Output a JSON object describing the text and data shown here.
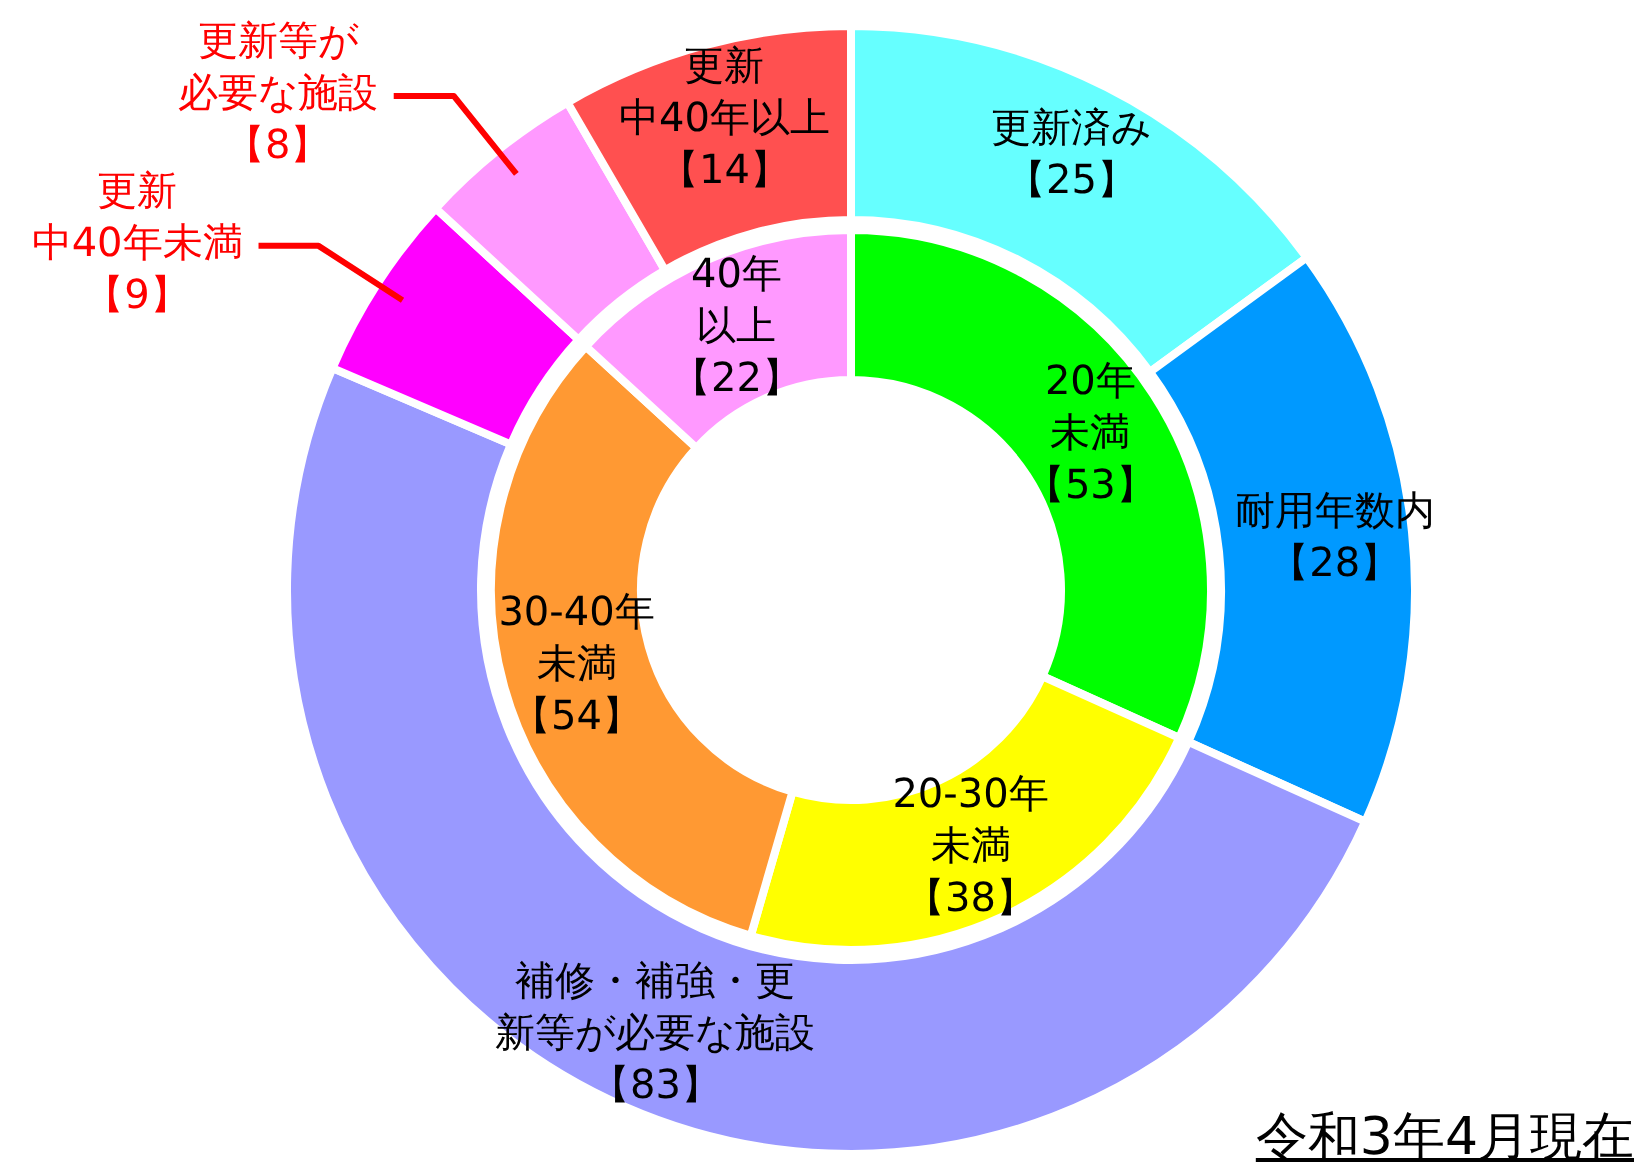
{
  "chart_data": [
    {
      "type": "donut",
      "annotations": [
        "令和3年4月現在"
      ],
      "categories": [
        "更新済み",
        "耐用年数内",
        "補修・補強・更新等が必要な施設",
        "更新中40年未満",
        "更新等が必要な施設",
        "更新中40年以上"
      ],
      "values": [
        25,
        28,
        83,
        9,
        8,
        14
      ],
      "colors": [
        "#66ffff",
        "#0099ff",
        "#9999ff",
        "#ff00ff",
        "#ff99ff",
        "#ff5050"
      ],
      "value_labels": [
        "【25】",
        "【28】",
        "【83】",
        "【9】",
        "【8】",
        "【14】"
      ]
    },
    {
      "type": "donut",
      "categories": [
        "20年未満",
        "20-30年未満",
        "30-40年未満",
        "40年以上"
      ],
      "values": [
        53,
        38,
        54,
        22
      ],
      "colors": [
        "#00ff00",
        "#ffff00",
        "#ff9933",
        "#ff99ff"
      ],
      "value_labels": [
        "【53】",
        "【38】",
        "【54】",
        "【22】"
      ]
    }
  ]
}
